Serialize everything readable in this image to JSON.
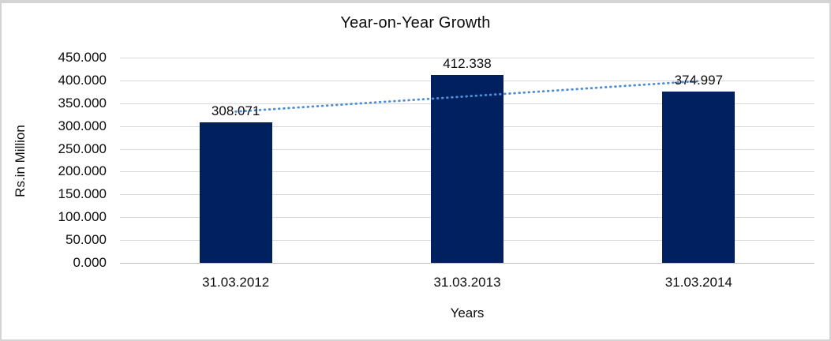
{
  "frame": {
    "background": "#ffffff",
    "border_color": "#d4d4d4"
  },
  "chart_data": {
    "type": "bar",
    "title": "Year-on-Year Growth",
    "xlabel": "Years",
    "ylabel": "Rs.in Million",
    "categories": [
      "31.03.2012",
      "31.03.2013",
      "31.03.2014"
    ],
    "values": [
      308.071,
      412.338,
      374.997
    ],
    "data_labels": [
      "308.071",
      "412.338",
      "374.997"
    ],
    "ylim": [
      0,
      450
    ],
    "ytick_step": 50,
    "ytick_labels": [
      "450.000",
      "400.000",
      "350.000",
      "300.000",
      "250.000",
      "200.000",
      "150.000",
      "100.000",
      "50.000",
      "0.000"
    ],
    "grid": true,
    "legend_position": "none",
    "bar_color": "#002060",
    "gridline_color": "#d9d9d9",
    "axis_line_color": "#c0c0c0",
    "text_color": "#0d0d0d",
    "trendline": {
      "type": "linear",
      "style": "dotted",
      "color": "#4f8dd5"
    }
  }
}
